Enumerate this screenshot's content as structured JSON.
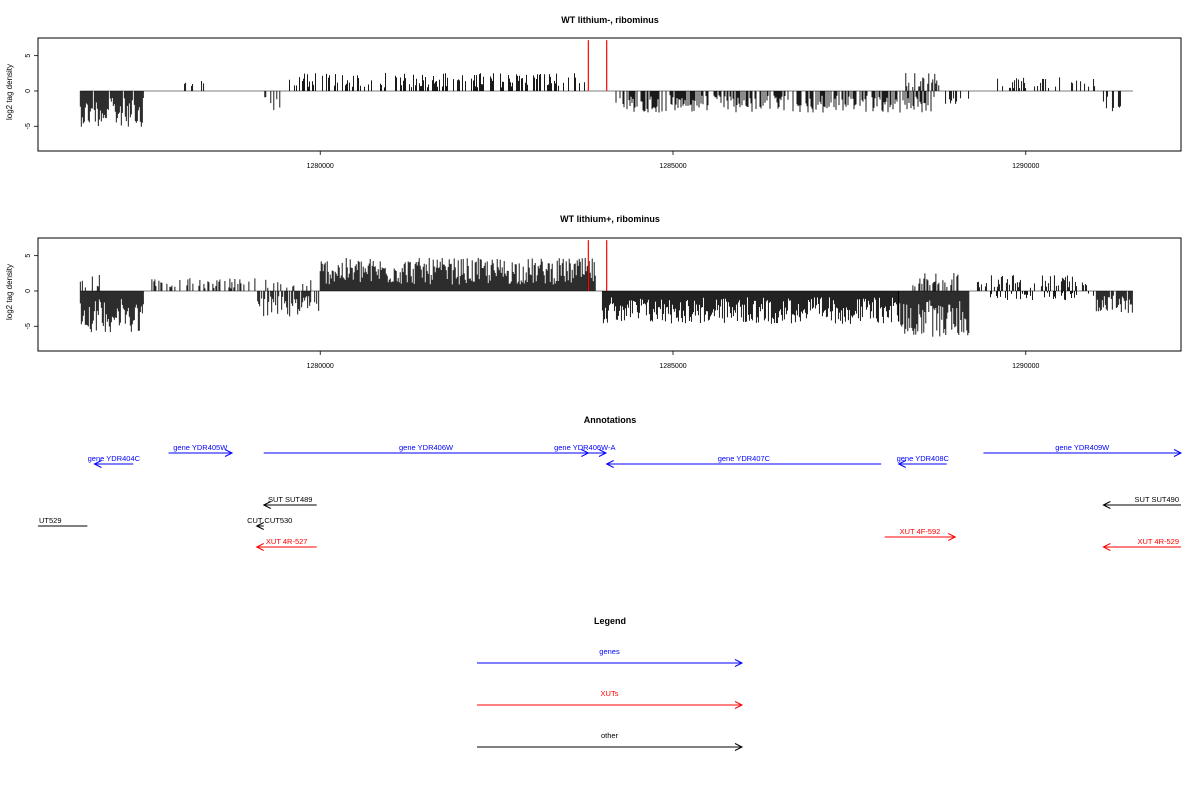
{
  "chart_data": [
    {
      "type": "bar",
      "title": "WT lithium-, ribominus",
      "ylabel": "log2 tag density",
      "xlim": [
        1276000,
        1292200
      ],
      "ylim": [
        -8.5,
        7.5
      ],
      "xticks": [
        1280000,
        1285000,
        1290000
      ],
      "xtick_labels": [
        "1280000",
        "1285000",
        "1290000"
      ],
      "yticks": [
        -5,
        0,
        5
      ],
      "ytick_labels": [
        "-5",
        "0",
        "5"
      ],
      "markers_x": [
        1283800,
        1284060
      ],
      "marker_color": "#ff0000",
      "data_extent": [
        1276600,
        1291520
      ],
      "segments": [
        {
          "start": 1276600,
          "end": 1277500,
          "sign": -1,
          "level": 3.9,
          "density": 0.9
        },
        {
          "start": 1277950,
          "end": 1278350,
          "sign": 1,
          "level": 1.2,
          "density": 0.25
        },
        {
          "start": 1279200,
          "end": 1279450,
          "sign": -1,
          "level": 2.3,
          "density": 0.3
        },
        {
          "start": 1279550,
          "end": 1283750,
          "sign": 1,
          "level": 2.0,
          "density": 0.45
        },
        {
          "start": 1284150,
          "end": 1288700,
          "sign": -1,
          "level": 2.4,
          "density": 0.6
        },
        {
          "start": 1288300,
          "end": 1288800,
          "sign": 1,
          "level": 2.0,
          "density": 0.5
        },
        {
          "start": 1288850,
          "end": 1289200,
          "sign": -1,
          "level": 1.5,
          "density": 0.3
        },
        {
          "start": 1289600,
          "end": 1291000,
          "sign": 1,
          "level": 1.5,
          "density": 0.25
        },
        {
          "start": 1291100,
          "end": 1291520,
          "sign": -1,
          "level": 2.2,
          "density": 0.35
        }
      ]
    },
    {
      "type": "bar",
      "title": "WT lithium+, ribominus",
      "ylabel": "log2 tag density",
      "xlim": [
        1276000,
        1292200
      ],
      "ylim": [
        -8.5,
        7.5
      ],
      "xticks": [
        1280000,
        1285000,
        1290000
      ],
      "xtick_labels": [
        "1280000",
        "1285000",
        "1290000"
      ],
      "yticks": [
        -5,
        0,
        5
      ],
      "ytick_labels": [
        "-5",
        "0",
        "5"
      ],
      "markers_x": [
        1283800,
        1284060
      ],
      "marker_color": "#ff0000",
      "data_extent": [
        1276600,
        1291520
      ],
      "segments": [
        {
          "start": 1276600,
          "end": 1277500,
          "sign": -1,
          "level": 4.5,
          "density": 1.0
        },
        {
          "start": 1276600,
          "end": 1276900,
          "sign": 1,
          "level": 2.0,
          "density": 0.3
        },
        {
          "start": 1277600,
          "end": 1279100,
          "sign": 1,
          "level": 1.4,
          "density": 0.35
        },
        {
          "start": 1279100,
          "end": 1280000,
          "sign": -1,
          "level": 2.8,
          "density": 0.7
        },
        {
          "start": 1279200,
          "end": 1279900,
          "sign": 1,
          "level": 1.3,
          "density": 0.3
        },
        {
          "start": 1280000,
          "end": 1283900,
          "sign": 1,
          "level": 3.6,
          "density": 1.0
        },
        {
          "start": 1284000,
          "end": 1288200,
          "sign": -1,
          "level": 3.6,
          "density": 1.0
        },
        {
          "start": 1288200,
          "end": 1289200,
          "sign": -1,
          "level": 5.0,
          "density": 1.0
        },
        {
          "start": 1288400,
          "end": 1289100,
          "sign": 1,
          "level": 2.0,
          "density": 0.4
        },
        {
          "start": 1289300,
          "end": 1291000,
          "sign": 1,
          "level": 1.8,
          "density": 0.45
        },
        {
          "start": 1289500,
          "end": 1291000,
          "sign": -1,
          "level": 1.0,
          "density": 0.3
        },
        {
          "start": 1291000,
          "end": 1291520,
          "sign": -1,
          "level": 2.4,
          "density": 0.9
        }
      ]
    }
  ],
  "annotations": {
    "title": "Annotations",
    "genes": [
      {
        "label": "gene YDR404C",
        "start": 1276800,
        "end": 1277350,
        "strand": "-",
        "row": 2
      },
      {
        "label": "gene YDR405W",
        "start": 1277850,
        "end": 1278750,
        "strand": "+",
        "row": 1
      },
      {
        "label": "gene YDR406W",
        "start": 1279200,
        "end": 1283800,
        "strand": "+",
        "row": 1
      },
      {
        "label": "gene YDR406W-A",
        "start": 1283450,
        "end": 1284050,
        "strand": "+",
        "row": 1
      },
      {
        "label": "gene YDR407C",
        "start": 1284060,
        "end": 1287950,
        "strand": "-",
        "row": 2
      },
      {
        "label": "gene YDR408C",
        "start": 1288200,
        "end": 1288880,
        "strand": "-",
        "row": 2
      },
      {
        "label": "gene YDR409W",
        "start": 1289400,
        "end": 1292200,
        "strand": "+",
        "row": 1
      }
    ],
    "other": [
      {
        "label": "SUT SUT489",
        "start": 1279200,
        "end": 1279950,
        "strand": "-",
        "row": 1
      },
      {
        "label": "UT529",
        "start": 1276000,
        "end": 1276700,
        "strand": "-",
        "row": 2
      },
      {
        "label": "CUT CUT530",
        "start": 1279100,
        "end": 1279200,
        "strand": "-",
        "row": 2
      },
      {
        "label": "SUT SUT490",
        "start": 1291100,
        "end": 1292200,
        "strand": "-",
        "row": 1
      }
    ],
    "xuts": [
      {
        "label": "XUT 4R-527",
        "start": 1279100,
        "end": 1279950,
        "strand": "-",
        "row": 3
      },
      {
        "label": "XUT 4F-592",
        "start": 1288000,
        "end": 1289000,
        "strand": "+",
        "row": 4
      },
      {
        "label": "XUT 4R-529",
        "start": 1291100,
        "end": 1292200,
        "strand": "-",
        "row": 3
      }
    ]
  },
  "legend": {
    "title": "Legend",
    "items": [
      {
        "label": "genes",
        "color": "#0000ff"
      },
      {
        "label": "XUTs",
        "color": "#ff0000"
      },
      {
        "label": "other",
        "color": "#000000"
      }
    ]
  },
  "colors": {
    "gene": "#0000ff",
    "xut": "#ff0000",
    "other": "#000000",
    "signal": "#000000",
    "marker": "#ff0000"
  }
}
